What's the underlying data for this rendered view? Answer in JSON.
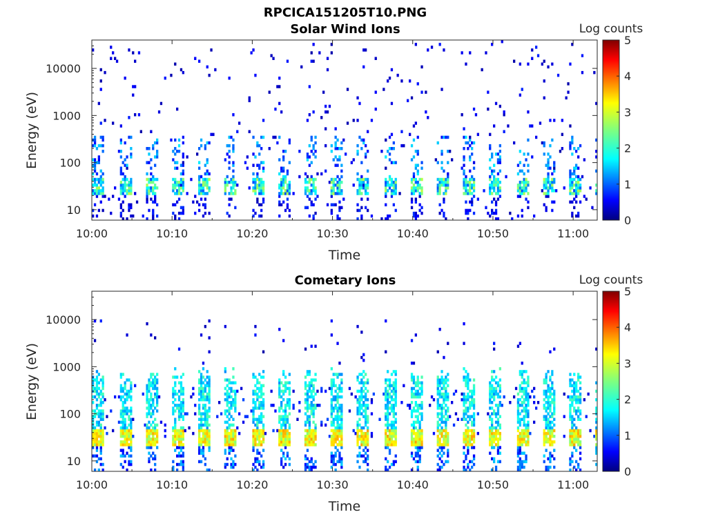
{
  "figure": {
    "title": "RPCICA151205T10.PNG"
  },
  "chart_data": [
    {
      "type": "heatmap",
      "title": "Solar Wind Ions",
      "xlabel": "Time",
      "ylabel": "Energy (eV)",
      "yscale": "log",
      "ylim": [
        6,
        40000
      ],
      "xlim": [
        "10:00",
        "11:03"
      ],
      "xticks": [
        "10:00",
        "10:10",
        "10:20",
        "10:30",
        "10:40",
        "10:50",
        "11:00"
      ],
      "yticks": [
        10,
        100,
        1000,
        10000
      ],
      "ytick_labels": [
        "10",
        "100",
        "1000",
        "10000"
      ],
      "colorbar": {
        "label": "Log counts",
        "range": [
          0,
          5
        ],
        "ticks": [
          "0",
          "1",
          "2",
          "3",
          "4",
          "5"
        ],
        "colormap": "jet"
      },
      "grid": false,
      "pattern": {
        "sweep_period_min": 3.3,
        "background_scatter_max_eV": 35000,
        "core_energy_eV": [
          20,
          45
        ],
        "core_level_log_counts": [
          1.0,
          2.8
        ],
        "scatter_level_log_counts": [
          0.2,
          0.8
        ]
      }
    },
    {
      "type": "heatmap",
      "title": "Cometary Ions",
      "xlabel": "Time",
      "ylabel": "Energy (eV)",
      "yscale": "log",
      "ylim": [
        6,
        40000
      ],
      "xlim": [
        "10:00",
        "11:03"
      ],
      "xticks": [
        "10:00",
        "10:10",
        "10:20",
        "10:30",
        "10:40",
        "10:50",
        "11:00"
      ],
      "yticks": [
        10,
        100,
        1000,
        10000
      ],
      "ytick_labels": [
        "10",
        "100",
        "1000",
        "10000"
      ],
      "colorbar": {
        "label": "Log counts",
        "range": [
          0,
          5
        ],
        "ticks": [
          "0",
          "1",
          "2",
          "3",
          "4",
          "5"
        ],
        "colormap": "jet"
      },
      "grid": false,
      "pattern": {
        "sweep_period_min": 3.3,
        "column_top_eV": [
          400,
          900
        ],
        "core_energy_eV": [
          20,
          45
        ],
        "core_level_log_counts": [
          2.5,
          3.6
        ],
        "column_level_log_counts": [
          1.3,
          2.3
        ]
      }
    }
  ]
}
